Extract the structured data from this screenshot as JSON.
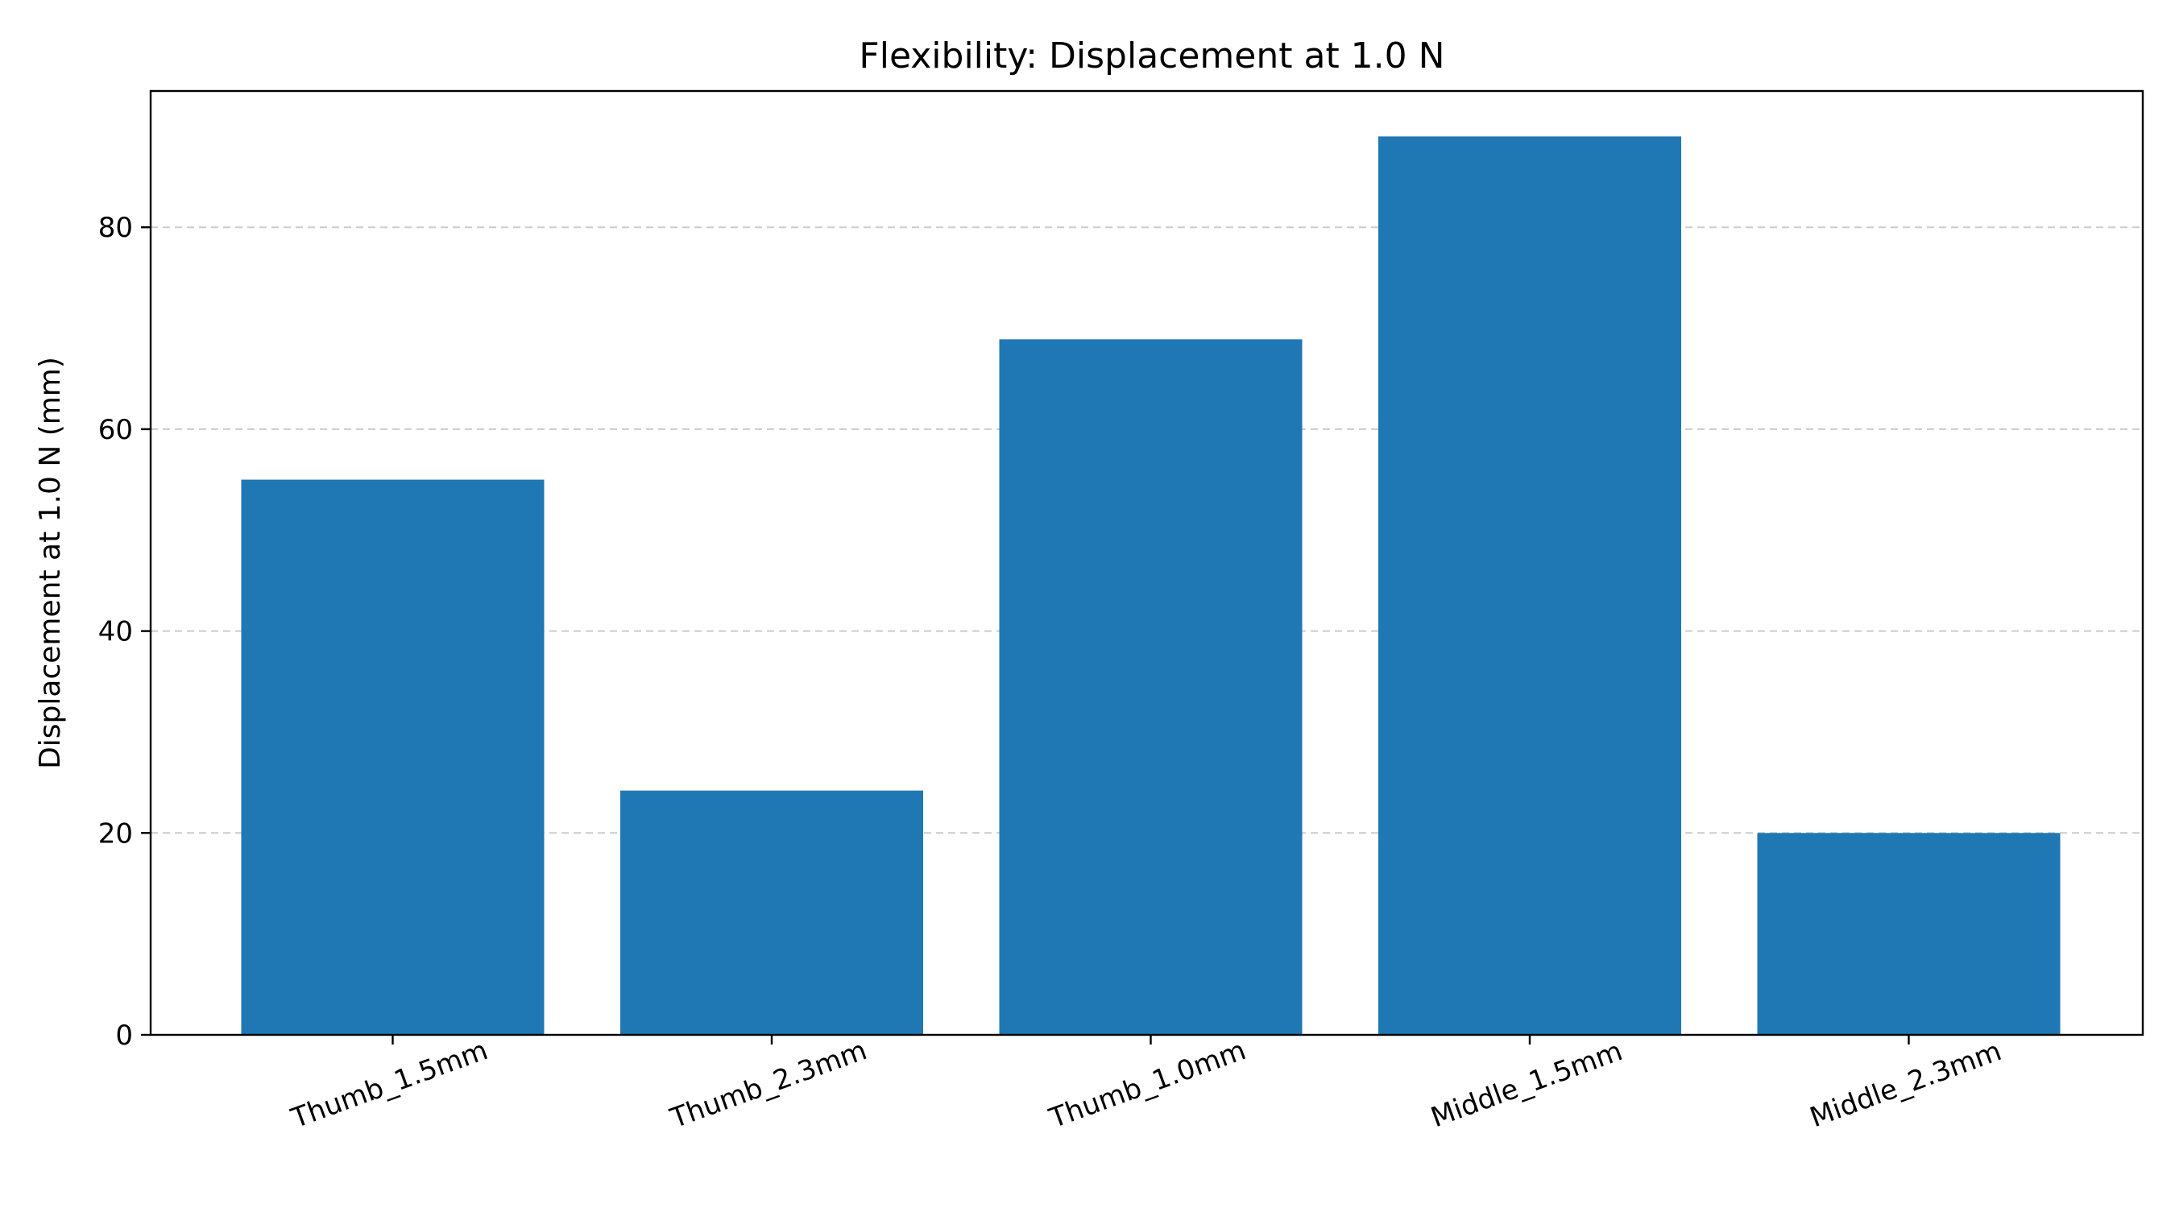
{
  "chart_data": {
    "type": "bar",
    "title": "Flexibility: Displacement at 1.0 N",
    "xlabel": "",
    "ylabel": "Displacement at 1.0 N (mm)",
    "categories": [
      "Thumb_1.5mm",
      "Thumb_2.3mm",
      "Thumb_1.0mm",
      "Middle_1.5mm",
      "Middle_2.3mm"
    ],
    "values": [
      55,
      24.2,
      68.9,
      89,
      20
    ],
    "ylim": [
      0,
      93.5
    ],
    "yticks": [
      0,
      20,
      40,
      60,
      80
    ],
    "grid": "y-dashed",
    "bar_color": "#1f77b4",
    "grid_color": "#cccccc",
    "x_tick_rotation": -20
  }
}
